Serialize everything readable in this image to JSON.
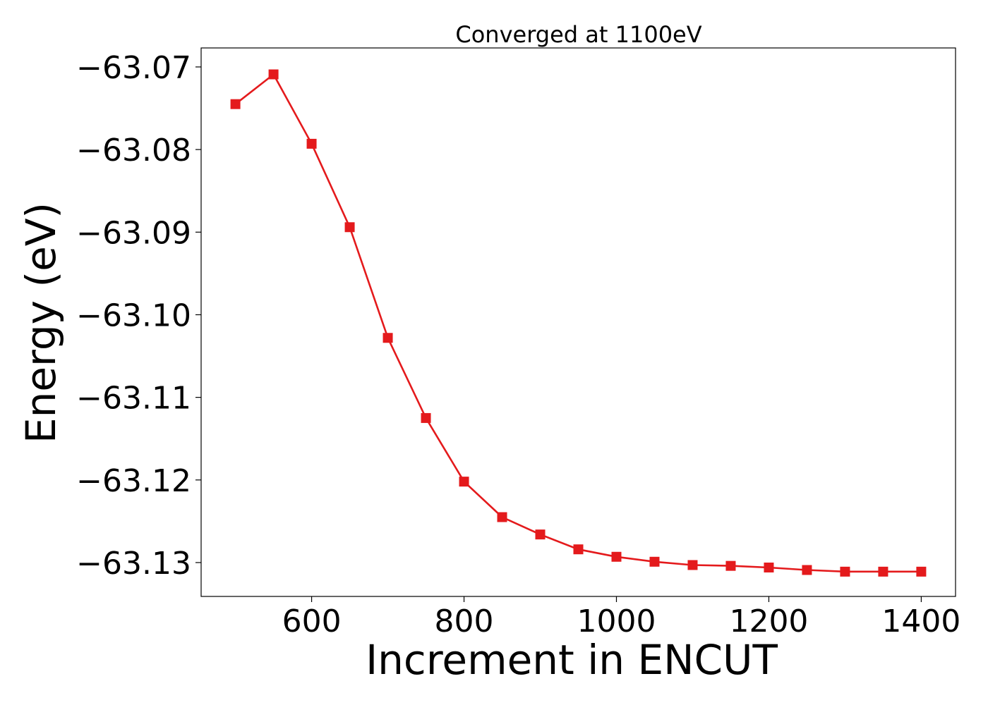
{
  "chart_data": {
    "type": "line",
    "title": "Converged at 1100eV",
    "xlabel": "Increment in ENCUT",
    "ylabel": "Energy (eV)",
    "xlim": [
      455,
      1445
    ],
    "ylim": [
      -63.1341,
      -63.0677
    ],
    "xticks": [
      600,
      800,
      1000,
      1200,
      1400
    ],
    "xtick_labels": [
      "600",
      "800",
      "1000",
      "1200",
      "1400"
    ],
    "yticks": [
      -63.07,
      -63.08,
      -63.09,
      -63.1,
      -63.11,
      -63.12,
      -63.13
    ],
    "ytick_labels": [
      "−63.07",
      "−63.08",
      "−63.09",
      "−63.10",
      "−63.11",
      "−63.12",
      "−63.13"
    ],
    "grid": false,
    "legend": "none",
    "series": [
      {
        "color": "#e41a1c",
        "marker": "square",
        "x": [
          500,
          550,
          600,
          650,
          700,
          750,
          800,
          850,
          900,
          950,
          1000,
          1050,
          1100,
          1150,
          1200,
          1250,
          1300,
          1350,
          1400
        ],
        "y": [
          -63.0745,
          -63.0709,
          -63.0793,
          -63.0894,
          -63.1028,
          -63.1125,
          -63.1202,
          -63.1245,
          -63.1266,
          -63.1284,
          -63.1293,
          -63.1299,
          -63.1303,
          -63.1304,
          -63.1306,
          -63.1309,
          -63.1311,
          -63.1311,
          -63.1311
        ]
      }
    ]
  }
}
